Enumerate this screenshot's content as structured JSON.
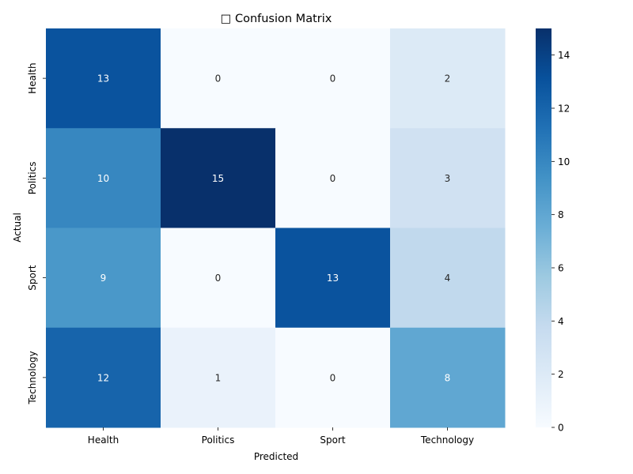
{
  "chart_data": {
    "type": "heatmap",
    "title": "□ Confusion Matrix",
    "xlabel": "Predicted",
    "ylabel": "Actual",
    "x_categories": [
      "Health",
      "Politics",
      "Sport",
      "Technology"
    ],
    "y_categories": [
      "Health",
      "Politics",
      "Sport",
      "Technology"
    ],
    "values": [
      [
        13,
        0,
        0,
        2
      ],
      [
        10,
        15,
        0,
        3
      ],
      [
        9,
        0,
        13,
        4
      ],
      [
        12,
        1,
        0,
        8
      ]
    ],
    "colorbar": {
      "min": 0,
      "max": 15,
      "ticks": [
        0,
        2,
        4,
        6,
        8,
        10,
        12,
        14
      ]
    },
    "colormap": "Blues",
    "colors": {
      "low": "#f7fbff",
      "high": "#08306b",
      "text_dark_bg": "#ffffff",
      "text_light_bg": "#262626"
    }
  }
}
